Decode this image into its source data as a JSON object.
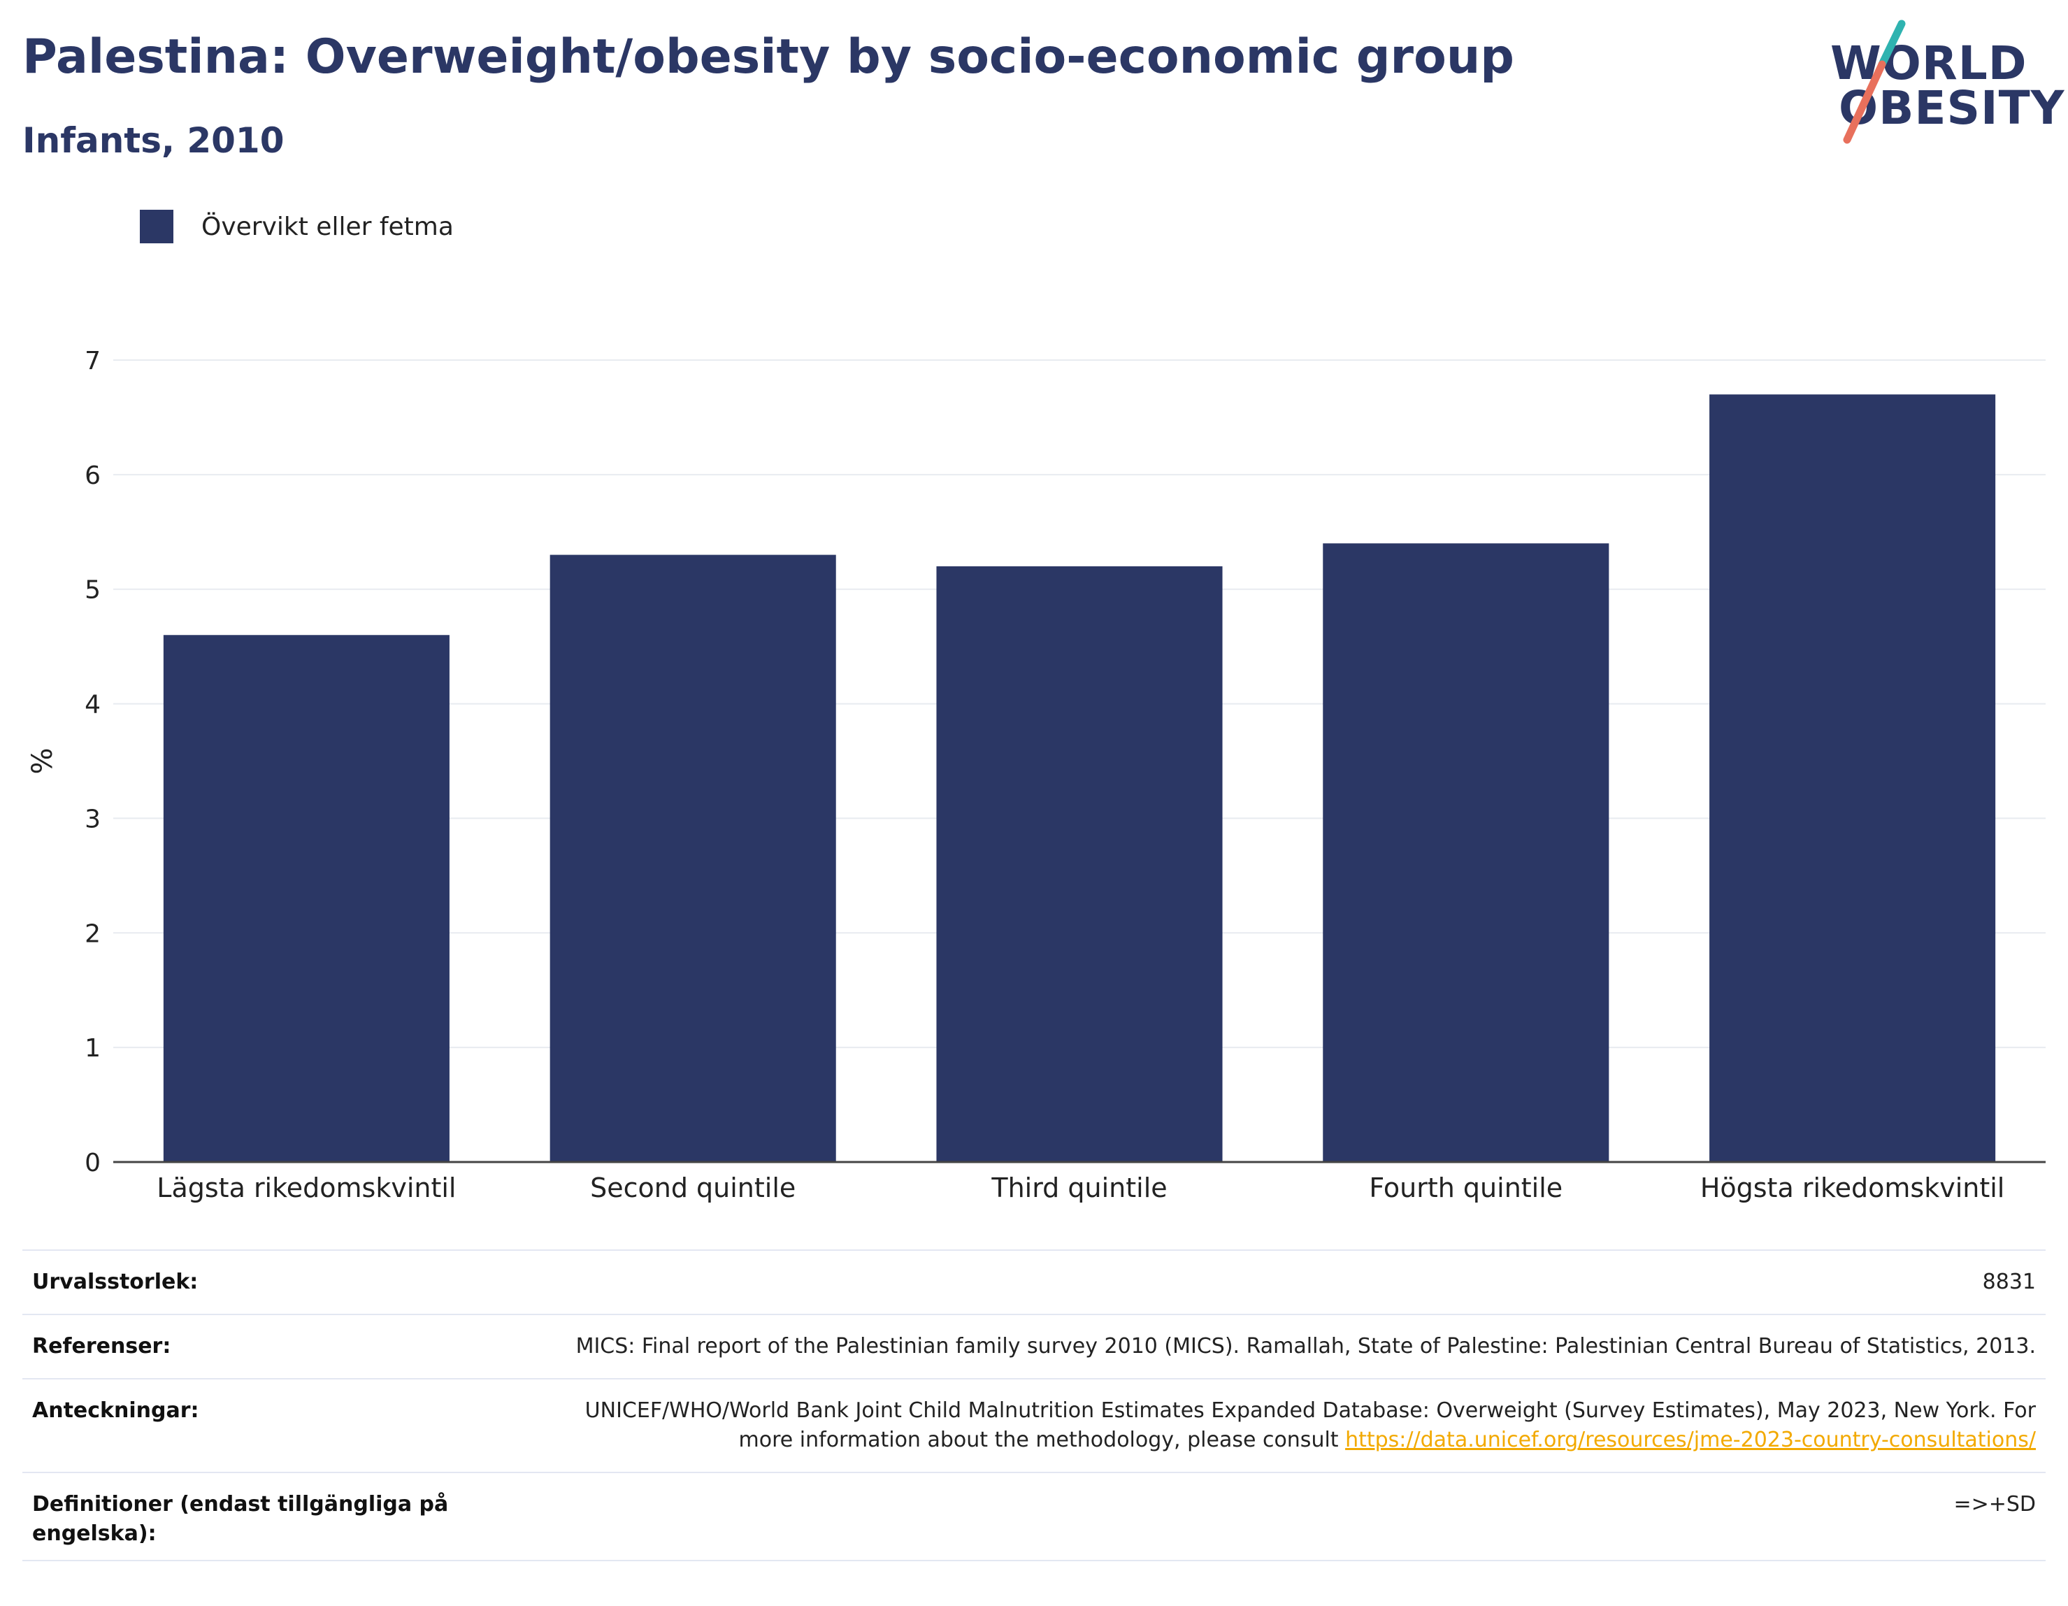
{
  "header": {
    "title": "Palestina: Overweight/obesity by socio-economic group",
    "subtitle": "Infants, 2010"
  },
  "logo": {
    "line1": "WORLD",
    "line2": "OBESITY",
    "colors": {
      "text": "#2b3765",
      "slash_top": "#2fb3b0",
      "slash_bottom": "#e8705c"
    }
  },
  "chart_data": {
    "type": "bar",
    "categories": [
      "Lägsta rikedomskvintil",
      "Second quintile",
      "Third quintile",
      "Fourth quintile",
      "Högsta rikedomskvintil"
    ],
    "series": [
      {
        "name": "Övervikt eller fetma",
        "values": [
          4.6,
          5.3,
          5.2,
          5.4,
          6.7
        ],
        "color": "#2b3765"
      }
    ],
    "title": "",
    "xlabel": "",
    "ylabel": "%",
    "ylim": [
      0,
      7
    ],
    "yticks": [
      0,
      1,
      2,
      3,
      4,
      5,
      6,
      7
    ],
    "grid": true,
    "legend_position": "top-left"
  },
  "meta": {
    "sample_size_label": "Urvalsstorlek:",
    "sample_size_value": "8831",
    "references_label": "Referenser:",
    "references_value": "MICS: Final report of the Palestinian family survey 2010 (MICS). Ramallah, State of Palestine: Palestinian Central Bureau of Statistics, 2013.",
    "notes_label": "Anteckningar:",
    "notes_value": "UNICEF/WHO/World Bank Joint Child Malnutrition Estimates Expanded Database: Overweight (Survey Estimates), May 2023, New York. For more information about the methodology, please consult ",
    "notes_link": "https://data.unicef.org/resources/jme-2023-country-consultations/",
    "definitions_label": "Definitioner (endast tillgängliga på engelska):",
    "definitions_value": "=>+SD"
  }
}
